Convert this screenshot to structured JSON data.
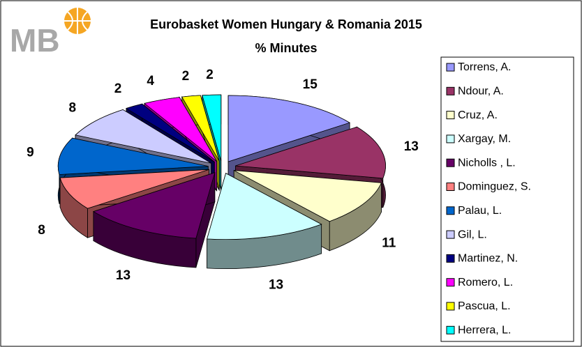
{
  "chart_data": {
    "type": "pie3d",
    "logo": "MB",
    "title": "Eurobasket Women Hungary & Romania 2015",
    "subtitle": "% Minutes",
    "categories": [
      "Torrens, A.",
      "Ndour, A.",
      "Cruz, A.",
      "Xargay, M.",
      "Nicholls , L.",
      "Dominguez, S.",
      "Palau, L.",
      "Gil, L.",
      "Martinez, N.",
      "Romero, L.",
      "Pascua, L.",
      "Herrera, L."
    ],
    "values": [
      15,
      13,
      11,
      13,
      13,
      8,
      9,
      8,
      2,
      4,
      2,
      2
    ],
    "colors": [
      "#9999ff",
      "#993366",
      "#ffffcc",
      "#ccffff",
      "#660066",
      "#ff8080",
      "#0066cc",
      "#ccccff",
      "#000080",
      "#ff00ff",
      "#ffff00",
      "#00ffff"
    ],
    "legend": "right"
  }
}
